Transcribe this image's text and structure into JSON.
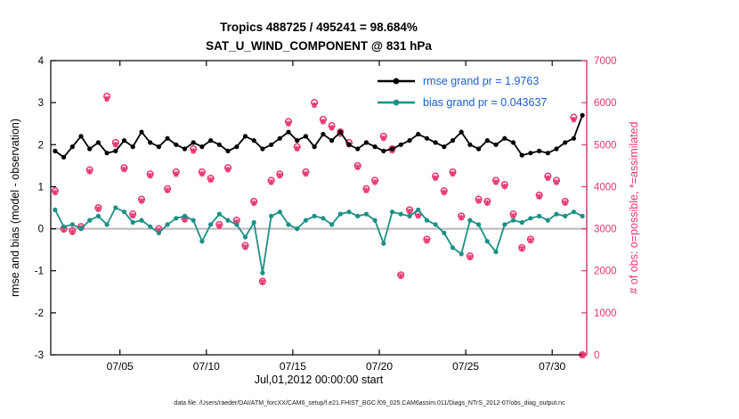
{
  "title_line1": "Tropics 488725 / 495241 = 98.684%",
  "title_line2": "SAT_U_WIND_COMPONENT @ 831 hPa",
  "footer": "data file: /Users/raeder/DAI/ATM_forcXX/CAM6_setup/f.e21.FHIST_BGC.f09_025.CAM6assim.011/Diags_NTrS_2012-07/obs_diag_output.nc",
  "chart_data": {
    "type": "line",
    "title": "Tropics 488725 / 495241 = 98.684% | SAT_U_WIND_COMPONENT @ 831 hPa",
    "xlabel": "Jul,01,2012 00:00:00 start",
    "ylabel_left": "rmse and bias (model - observation)",
    "ylabel_right": "# of obs: o=possible, *=assimilated",
    "x_range": [
      1,
      32
    ],
    "left_ylim": [
      -3,
      4
    ],
    "right_ylim": [
      0,
      7000
    ],
    "left_ticks": [
      -3,
      -2,
      -1,
      0,
      1,
      2,
      3,
      4
    ],
    "right_ticks": [
      0,
      1000,
      2000,
      3000,
      4000,
      5000,
      6000,
      7000
    ],
    "x_ticks": {
      "values": [
        5,
        10,
        15,
        20,
        25,
        30
      ],
      "labels": [
        "07/05",
        "07/10",
        "07/15",
        "07/20",
        "07/25",
        "07/30"
      ]
    },
    "grid": false,
    "legend_position": "top-right-inside",
    "legend": [
      {
        "series": "rmse",
        "label": "rmse grand pr = 1.9763"
      },
      {
        "series": "bias",
        "label": "bias grand pr = 0.043637"
      }
    ],
    "colors": {
      "rmse": "#000000",
      "bias": "#1b9086",
      "obs": "#e8356f",
      "zero_line": "#b8b8b8",
      "legend_text": "#1b5ed6"
    },
    "x": [
      1.25,
      1.75,
      2.25,
      2.75,
      3.25,
      3.75,
      4.25,
      4.75,
      5.25,
      5.75,
      6.25,
      6.75,
      7.25,
      7.75,
      8.25,
      8.75,
      9.25,
      9.75,
      10.25,
      10.75,
      11.25,
      11.75,
      12.25,
      12.75,
      13.25,
      13.75,
      14.25,
      14.75,
      15.25,
      15.75,
      16.25,
      16.75,
      17.25,
      17.75,
      18.25,
      18.75,
      19.25,
      19.75,
      20.25,
      20.75,
      21.25,
      21.75,
      22.25,
      22.75,
      23.25,
      23.75,
      24.25,
      24.75,
      25.25,
      25.75,
      26.25,
      26.75,
      27.25,
      27.75,
      28.25,
      28.75,
      29.25,
      29.75,
      30.25,
      30.75,
      31.25,
      31.75
    ],
    "series": [
      {
        "name": "rmse",
        "values": [
          1.85,
          1.7,
          1.95,
          2.2,
          1.9,
          2.05,
          1.8,
          1.85,
          2.1,
          1.95,
          2.3,
          2.05,
          1.95,
          2.15,
          2.0,
          1.9,
          2.05,
          1.95,
          2.1,
          2.0,
          1.85,
          1.95,
          2.2,
          2.1,
          1.9,
          2.0,
          2.15,
          2.3,
          2.1,
          2.2,
          1.95,
          2.25,
          2.1,
          2.3,
          2.0,
          1.9,
          2.05,
          1.95,
          1.85,
          1.9,
          2.0,
          2.1,
          2.25,
          2.15,
          2.05,
          1.95,
          2.1,
          2.3,
          2.0,
          1.9,
          2.1,
          2.0,
          2.15,
          2.05,
          1.75,
          1.8,
          1.85,
          1.8,
          1.9,
          2.05,
          2.15,
          2.7
        ]
      },
      {
        "name": "bias",
        "values": [
          0.45,
          0.05,
          0.1,
          0.0,
          0.2,
          0.3,
          0.1,
          0.5,
          0.4,
          0.15,
          0.2,
          0.05,
          -0.1,
          0.1,
          0.25,
          0.3,
          0.2,
          -0.3,
          0.1,
          0.35,
          0.2,
          0.1,
          -0.2,
          0.15,
          -1.05,
          0.3,
          0.4,
          0.1,
          0.0,
          0.2,
          0.3,
          0.25,
          0.1,
          0.35,
          0.4,
          0.3,
          0.35,
          0.2,
          -0.35,
          0.4,
          0.35,
          0.3,
          0.45,
          0.2,
          0.1,
          -0.1,
          -0.45,
          -0.6,
          0.2,
          0.1,
          -0.3,
          -0.55,
          0.1,
          0.2,
          0.15,
          0.25,
          0.3,
          0.2,
          0.35,
          0.3,
          0.4,
          0.3
        ]
      },
      {
        "name": "obs_possible",
        "values": [
          3900,
          3000,
          2950,
          3050,
          4400,
          3500,
          6150,
          5050,
          4450,
          3350,
          3700,
          4300,
          3000,
          3950,
          4350,
          3250,
          4900,
          4350,
          4200,
          3100,
          4450,
          3200,
          2600,
          3650,
          1750,
          4150,
          4300,
          5550,
          4950,
          4350,
          6000,
          5600,
          5450,
          5300,
          5050,
          4500,
          3950,
          4150,
          5200,
          4900,
          1900,
          3450,
          3350,
          2750,
          4250,
          3900,
          4350,
          3300,
          2350,
          3700,
          3650,
          4150,
          4050,
          3350,
          2550,
          2750,
          3800,
          4250,
          4150,
          3650,
          5650,
          0
        ]
      },
      {
        "name": "obs_assimilated",
        "values": [
          3860,
          2975,
          2915,
          3020,
          4360,
          3465,
          6090,
          5000,
          4410,
          3310,
          3660,
          4260,
          2960,
          3910,
          4300,
          3210,
          4850,
          4305,
          4160,
          3060,
          4405,
          3160,
          2560,
          3605,
          1725,
          4105,
          4260,
          5500,
          4905,
          4305,
          5940,
          5550,
          5400,
          5250,
          5000,
          4460,
          3910,
          4105,
          5150,
          4855,
          1870,
          3410,
          3305,
          2710,
          4205,
          3860,
          4305,
          3260,
          2315,
          3660,
          3610,
          4105,
          4005,
          3310,
          2520,
          2715,
          3760,
          4205,
          4105,
          3610,
          5595,
          0
        ]
      }
    ]
  }
}
